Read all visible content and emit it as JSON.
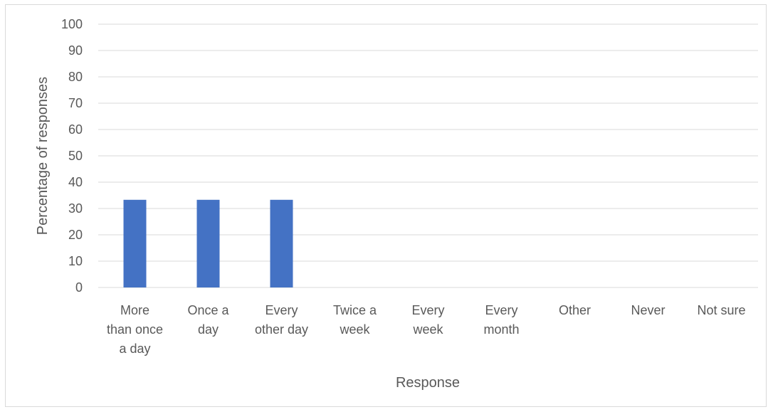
{
  "chart_data": {
    "type": "bar",
    "categories": [
      [
        "More",
        "than once",
        "a day"
      ],
      [
        "Once a",
        "day"
      ],
      [
        "Every",
        "other day"
      ],
      [
        "Twice a",
        "week"
      ],
      [
        "Every",
        "week"
      ],
      [
        "Every",
        "month"
      ],
      [
        "Other"
      ],
      [
        "Never"
      ],
      [
        "Not sure"
      ]
    ],
    "values": [
      33.3,
      33.3,
      33.3,
      0,
      0,
      0,
      0,
      0,
      0
    ],
    "xlabel": "Response",
    "ylabel": "Percentage of responses",
    "ylim": [
      0,
      100
    ],
    "yticks": [
      0,
      10,
      20,
      30,
      40,
      50,
      60,
      70,
      80,
      90,
      100
    ],
    "grid": true,
    "bar_color": "#4472c4",
    "grid_color": "#d9d9d9"
  }
}
